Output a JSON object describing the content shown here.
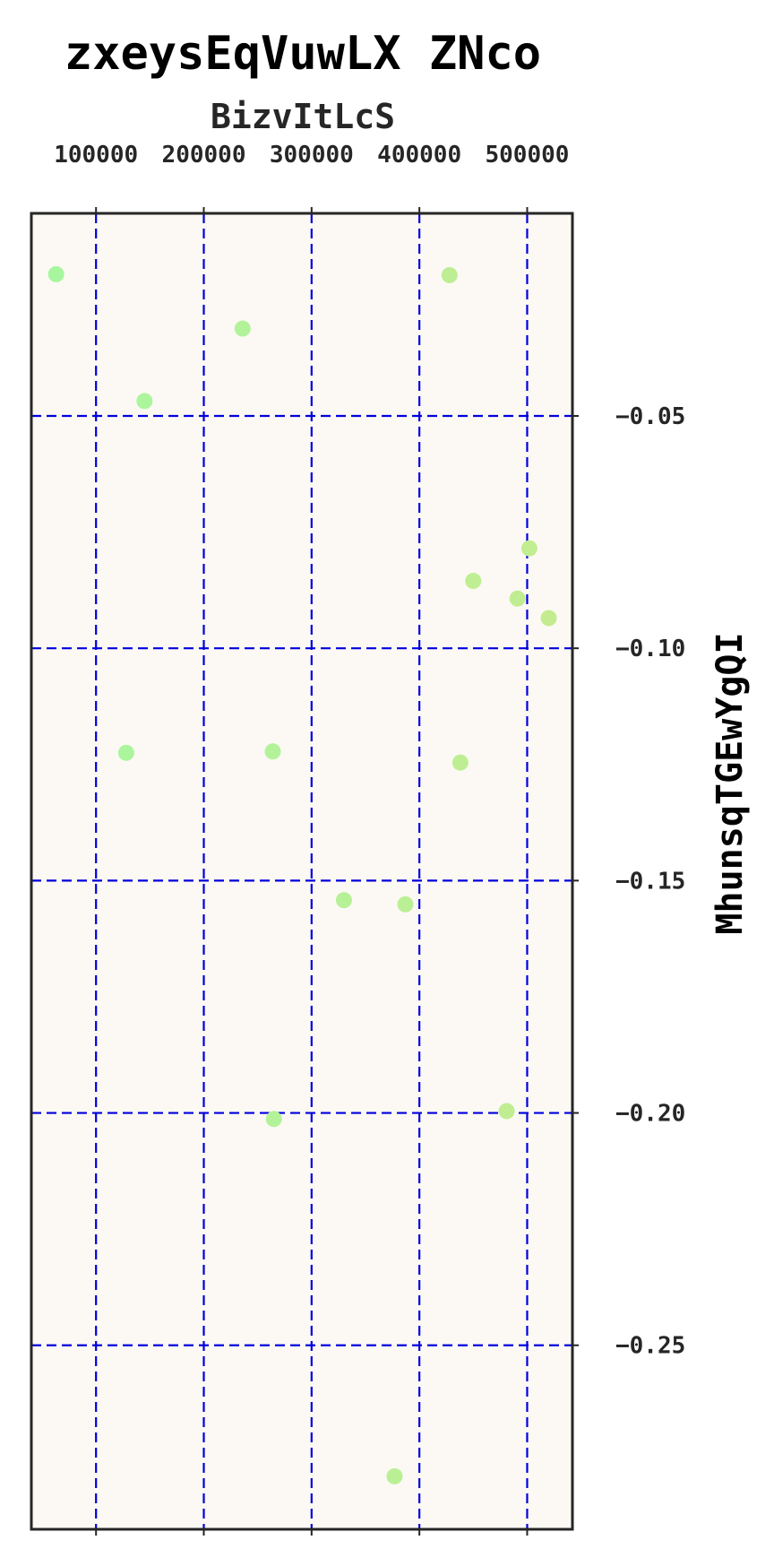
{
  "chart_data": {
    "type": "scatter",
    "title": "zxeysEqVuwLX ZNco",
    "xlabel": "BizvItLcS",
    "ylabel": "MhunsqTGEwYgQI",
    "xlim": [
      40000,
      542000
    ],
    "ylim": [
      -0.2896,
      -0.0064
    ],
    "x_ticks": [
      100000,
      200000,
      300000,
      400000,
      500000
    ],
    "x_tick_labels": [
      "100000",
      "200000",
      "300000",
      "400000",
      "500000"
    ],
    "y_ticks": [
      -0.05,
      -0.1,
      -0.15,
      -0.2,
      -0.25
    ],
    "y_tick_labels": [
      "−0.05",
      "−0.10",
      "−0.15",
      "−0.20",
      "−0.25"
    ],
    "x_axis_position": "top",
    "y_axis_position": "right",
    "grid": true,
    "grid_style": "dashed",
    "colors": {
      "grid": "#0000dd",
      "plot_background": "#fcf9f4",
      "frame": "#262626",
      "point_start": "#a6f7a0",
      "point_end": "#c4ec90"
    },
    "series": [
      {
        "points": [
          {
            "x": 63000,
            "y": -0.0195
          },
          {
            "x": 145000,
            "y": -0.0468
          },
          {
            "x": 236000,
            "y": -0.0312
          },
          {
            "x": 428000,
            "y": -0.0197
          },
          {
            "x": 502000,
            "y": -0.0785
          },
          {
            "x": 450000,
            "y": -0.0855
          },
          {
            "x": 491000,
            "y": -0.0893
          },
          {
            "x": 520000,
            "y": -0.0935
          },
          {
            "x": 128000,
            "y": -0.1225
          },
          {
            "x": 264000,
            "y": -0.1222
          },
          {
            "x": 438000,
            "y": -0.1246
          },
          {
            "x": 330000,
            "y": -0.1542
          },
          {
            "x": 387000,
            "y": -0.1551
          },
          {
            "x": 265000,
            "y": -0.2013
          },
          {
            "x": 481000,
            "y": -0.1996
          },
          {
            "x": 377000,
            "y": -0.2782
          }
        ]
      }
    ]
  }
}
